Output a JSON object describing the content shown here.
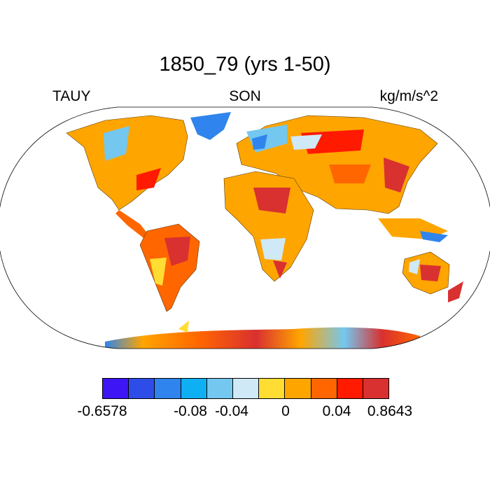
{
  "title": "1850_79 (yrs 1-50)",
  "left_label": "TAUY",
  "center_label": "SON",
  "right_label": "kg/m/s^2",
  "colorbar": {
    "colors": [
      "#3e16f5",
      "#2e4de8",
      "#2f84ed",
      "#0fb0f3",
      "#74c7ef",
      "#cfe9f7",
      "#ffdd33",
      "#ffa500",
      "#ff6600",
      "#ff1a00",
      "#d93030"
    ],
    "labels": [
      "-0.6578",
      "-0.08",
      "-0.04",
      "0",
      "0.04",
      "0.8643"
    ]
  },
  "chart_data": {
    "type": "heatmap",
    "projection": "Robinson",
    "variable": "TAUY",
    "season": "SON",
    "units": "kg/m/s^2",
    "range": [
      -0.6578,
      0.8643
    ],
    "ocean": "blank"
  }
}
